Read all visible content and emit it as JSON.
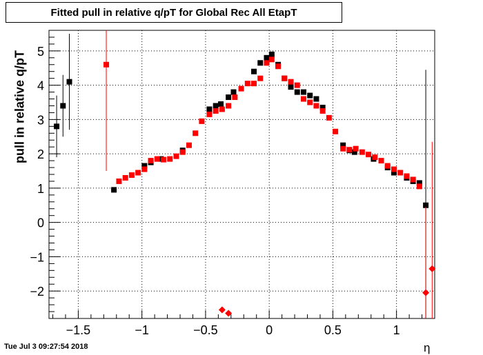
{
  "title": "Fitted pull in relative q/pT for Global Rec All EtapT",
  "timestamp": "Tue Jul  3 09:27:54 2018",
  "chart_data": {
    "type": "scatter",
    "title": "Fitted pull in relative q/pT for Global Rec All EtapT",
    "xlabel": "η",
    "ylabel": "pull in relative q/pT",
    "xlim": [
      -1.73,
      1.3
    ],
    "ylim": [
      -2.8,
      5.6
    ],
    "grid": true,
    "x_ticks": [
      -1.5,
      -1,
      -0.5,
      0,
      0.5,
      1
    ],
    "x_tick_labels": [
      "−1.5",
      "−1",
      "−0.5",
      "0",
      "0.5",
      "1"
    ],
    "y_ticks": [
      -2,
      -1,
      0,
      1,
      2,
      3,
      4,
      5
    ],
    "y_tick_labels": [
      "−2",
      "−1",
      "0",
      "1",
      "2",
      "3",
      "4",
      "5"
    ],
    "series": [
      {
        "color": "#000000",
        "marker": "square",
        "points": [
          {
            "x": -1.67,
            "y": 2.8,
            "err": 0.9
          },
          {
            "x": -1.62,
            "y": 3.4,
            "err": 0.9
          },
          {
            "x": -1.57,
            "y": 4.1,
            "err": 1.4
          },
          {
            "x": -1.22,
            "y": 0.95,
            "err": 0
          },
          {
            "x": -0.98,
            "y": 1.65,
            "err": 0
          },
          {
            "x": -0.93,
            "y": 1.75,
            "err": 0
          },
          {
            "x": -0.85,
            "y": 1.85,
            "err": 0
          },
          {
            "x": -0.68,
            "y": 2.1,
            "err": 0
          },
          {
            "x": -0.47,
            "y": 3.3,
            "err": 0
          },
          {
            "x": -0.42,
            "y": 3.4,
            "err": 0
          },
          {
            "x": -0.38,
            "y": 3.45,
            "err": 0
          },
          {
            "x": -0.32,
            "y": 3.65,
            "err": 0
          },
          {
            "x": -0.28,
            "y": 3.8,
            "err": 0
          },
          {
            "x": -0.12,
            "y": 4.4,
            "err": 0
          },
          {
            "x": -0.07,
            "y": 4.65,
            "err": 0
          },
          {
            "x": -0.02,
            "y": 4.8,
            "err": 0
          },
          {
            "x": 0.02,
            "y": 4.9,
            "err": 0
          },
          {
            "x": 0.07,
            "y": 4.6,
            "err": 0
          },
          {
            "x": 0.12,
            "y": 4.2,
            "err": 0
          },
          {
            "x": 0.17,
            "y": 3.95,
            "err": 0
          },
          {
            "x": 0.22,
            "y": 3.8,
            "err": 0
          },
          {
            "x": 0.27,
            "y": 3.8,
            "err": 0
          },
          {
            "x": 0.32,
            "y": 3.7,
            "err": 0
          },
          {
            "x": 0.37,
            "y": 3.6,
            "err": 0
          },
          {
            "x": 0.42,
            "y": 3.35,
            "err": 0
          },
          {
            "x": 0.58,
            "y": 2.25,
            "err": 0
          },
          {
            "x": 0.63,
            "y": 2.1,
            "err": 0
          },
          {
            "x": 0.67,
            "y": 2.05,
            "err": 0
          },
          {
            "x": 0.82,
            "y": 1.85,
            "err": 0
          },
          {
            "x": 0.93,
            "y": 1.6,
            "err": 0
          },
          {
            "x": 0.98,
            "y": 1.45,
            "err": 0
          },
          {
            "x": 1.08,
            "y": 1.3,
            "err": 0
          },
          {
            "x": 1.13,
            "y": 1.2,
            "err": 0
          },
          {
            "x": 1.18,
            "y": 1.15,
            "err": 0
          },
          {
            "x": 1.23,
            "y": 0.5,
            "err": 3.95
          }
        ]
      },
      {
        "color": "#ff0000",
        "marker": "square",
        "points": [
          {
            "x": -1.28,
            "y": 4.6,
            "err": 3.1
          },
          {
            "x": -1.18,
            "y": 1.2,
            "err": 0
          },
          {
            "x": -1.13,
            "y": 1.3,
            "err": 0
          },
          {
            "x": -1.08,
            "y": 1.38,
            "err": 0
          },
          {
            "x": -1.03,
            "y": 1.45,
            "err": 0
          },
          {
            "x": -0.98,
            "y": 1.55,
            "err": 0
          },
          {
            "x": -0.93,
            "y": 1.8,
            "err": 0
          },
          {
            "x": -0.88,
            "y": 1.85,
            "err": 0
          },
          {
            "x": -0.83,
            "y": 1.83,
            "err": 0
          },
          {
            "x": -0.78,
            "y": 1.85,
            "err": 0
          },
          {
            "x": -0.73,
            "y": 1.93,
            "err": 0
          },
          {
            "x": -0.68,
            "y": 2.05,
            "err": 0
          },
          {
            "x": -0.63,
            "y": 2.25,
            "err": 0
          },
          {
            "x": -0.58,
            "y": 2.6,
            "err": 0
          },
          {
            "x": -0.53,
            "y": 2.95,
            "err": 0
          },
          {
            "x": -0.47,
            "y": 3.15,
            "err": 0
          },
          {
            "x": -0.42,
            "y": 3.25,
            "err": 0
          },
          {
            "x": -0.37,
            "y": 3.3,
            "err": 0
          },
          {
            "x": -0.32,
            "y": 3.4,
            "err": 0
          },
          {
            "x": -0.27,
            "y": 3.65,
            "err": 0
          },
          {
            "x": -0.22,
            "y": 3.9,
            "err": 0
          },
          {
            "x": -0.17,
            "y": 4.05,
            "err": 0
          },
          {
            "x": -0.12,
            "y": 4.05,
            "err": 0
          },
          {
            "x": -0.07,
            "y": 4.2,
            "err": 0
          },
          {
            "x": -0.02,
            "y": 4.65,
            "err": 0
          },
          {
            "x": 0.02,
            "y": 4.75,
            "err": 0
          },
          {
            "x": 0.07,
            "y": 4.55,
            "err": 0
          },
          {
            "x": 0.12,
            "y": 4.2,
            "err": 0
          },
          {
            "x": 0.17,
            "y": 4.1,
            "err": 0
          },
          {
            "x": 0.22,
            "y": 4.0,
            "err": 0
          },
          {
            "x": 0.27,
            "y": 3.6,
            "err": 0
          },
          {
            "x": 0.32,
            "y": 3.5,
            "err": 0
          },
          {
            "x": 0.37,
            "y": 3.4,
            "err": 0
          },
          {
            "x": 0.42,
            "y": 3.25,
            "err": 0
          },
          {
            "x": 0.47,
            "y": 3.05,
            "err": 0
          },
          {
            "x": 0.52,
            "y": 2.65,
            "err": 0
          },
          {
            "x": 0.58,
            "y": 2.15,
            "err": 0
          },
          {
            "x": 0.63,
            "y": 2.12,
            "err": 0
          },
          {
            "x": 0.68,
            "y": 2.15,
            "err": 0
          },
          {
            "x": 0.73,
            "y": 2.05,
            "err": 0
          },
          {
            "x": 0.78,
            "y": 1.98,
            "err": 0
          },
          {
            "x": 0.83,
            "y": 1.9,
            "err": 0
          },
          {
            "x": 0.88,
            "y": 1.8,
            "err": 0
          },
          {
            "x": 0.93,
            "y": 1.65,
            "err": 0
          },
          {
            "x": 0.98,
            "y": 1.55,
            "err": 0
          },
          {
            "x": 1.03,
            "y": 1.45,
            "err": 0
          },
          {
            "x": 1.08,
            "y": 1.35,
            "err": 0
          },
          {
            "x": 1.13,
            "y": 1.25,
            "err": 0
          },
          {
            "x": 1.18,
            "y": 1.05,
            "err": 0
          }
        ]
      },
      {
        "color": "#ff0000",
        "marker": "diamond",
        "points": [
          {
            "x": -0.37,
            "y": -2.55,
            "err": 0
          },
          {
            "x": -0.32,
            "y": -2.65,
            "err": 0
          },
          {
            "x": 1.23,
            "y": -2.05,
            "err": 2.5
          },
          {
            "x": 1.28,
            "y": -1.35,
            "err": 3.7
          }
        ]
      }
    ]
  }
}
